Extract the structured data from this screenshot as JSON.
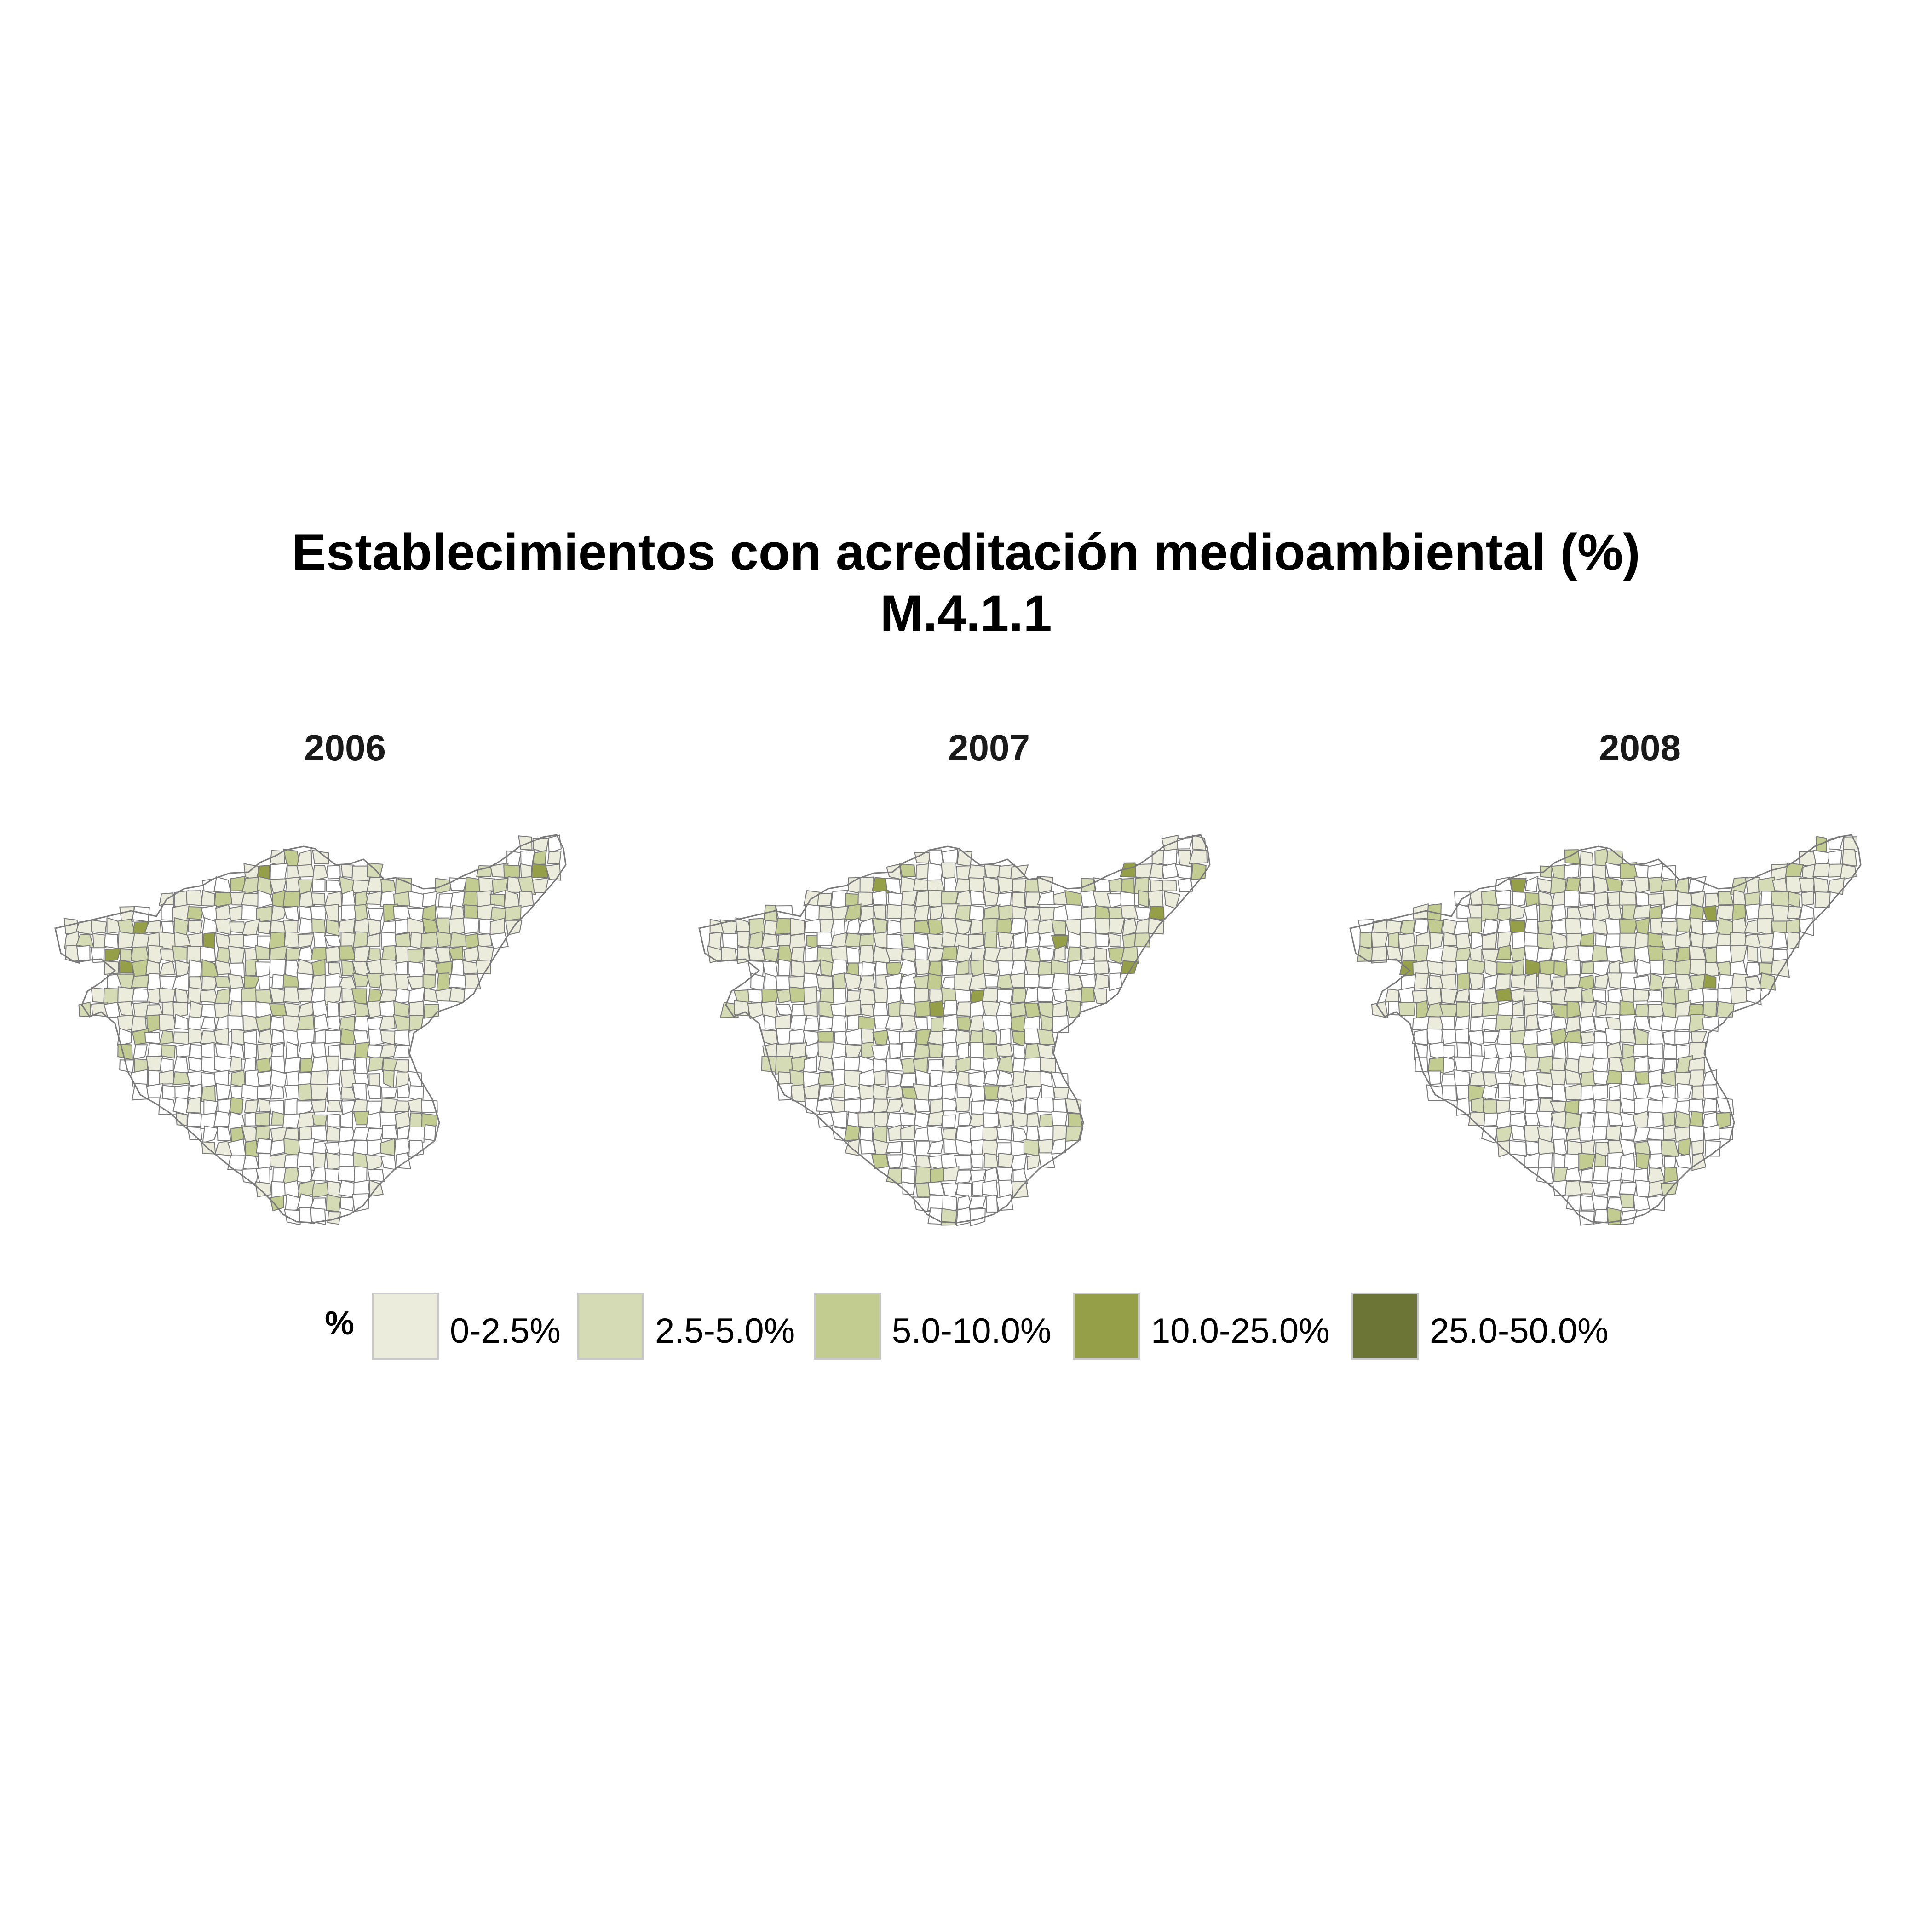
{
  "title": {
    "line1": "Establecimientos con acreditación medioambiental (%)",
    "line2": "M.4.1.1"
  },
  "panels": [
    {
      "year": "2006"
    },
    {
      "year": "2007"
    },
    {
      "year": "2008"
    }
  ],
  "legend": {
    "title": "%",
    "items": [
      {
        "label": "0-2.5%",
        "color": "#ebecdc"
      },
      {
        "label": "2.5-5.0%",
        "color": "#d4dbb5"
      },
      {
        "label": "5.0-10.0%",
        "color": "#c2cb90"
      },
      {
        "label": "10.0-25.0%",
        "color": "#959f48"
      },
      {
        "label": "25.0-50.0%",
        "color": "#6c7536"
      }
    ]
  },
  "map_colors": {
    "none": "#ffffff",
    "border": "#7a7a7a"
  }
}
